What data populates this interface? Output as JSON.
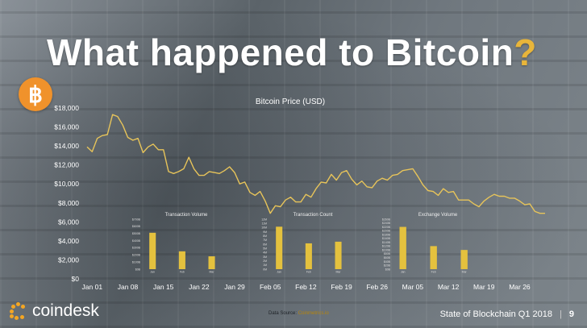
{
  "slide": {
    "title_main": "What happened to Bitcoin",
    "title_mark": "?",
    "badge_symbol": "฿",
    "brand": "coindesk",
    "source_prefix": "Data Source: ",
    "source_link": "Coinmetrics.io",
    "footer_title": "State of Blockchain Q1 2018",
    "footer_separator": "|",
    "page_number": "9"
  },
  "colors": {
    "price_line": "#e7c45a",
    "bars": "#e4c13e",
    "axis_text": "#ffffff",
    "accent": "#e8b53a",
    "badge": "#f0922b"
  },
  "icons": {
    "badge": "bitcoin-icon",
    "brand": "coindesk-logo-icon"
  },
  "chart_data": [
    {
      "type": "line",
      "title": "Bitcoin Price (USD)",
      "xlabel": "",
      "ylabel": "",
      "ylim": [
        0,
        18000
      ],
      "y_ticks": [
        "$0",
        "$2,000",
        "$4,000",
        "$6,000",
        "$8,000",
        "$10,000",
        "$12,000",
        "$14,000",
        "$16,000",
        "$18,000"
      ],
      "x_ticks": [
        "Jan 01",
        "Jan 08",
        "Jan 15",
        "Jan 22",
        "Jan 29",
        "Feb 05",
        "Feb 12",
        "Feb 19",
        "Feb 26",
        "Mar 05",
        "Mar 12",
        "Mar 19",
        "Mar 26"
      ],
      "grid": false,
      "series": [
        {
          "x": [
            "Dec 31",
            "Jan 01",
            "Jan 02",
            "Jan 03",
            "Jan 04",
            "Jan 05",
            "Jan 06",
            "Jan 07",
            "Jan 08",
            "Jan 09",
            "Jan 10",
            "Jan 11",
            "Jan 12",
            "Jan 13",
            "Jan 14",
            "Jan 15",
            "Jan 16",
            "Jan 17",
            "Jan 18",
            "Jan 19",
            "Jan 20",
            "Jan 21",
            "Jan 22",
            "Jan 23",
            "Jan 24",
            "Jan 25",
            "Jan 26",
            "Jan 27",
            "Jan 28",
            "Jan 29",
            "Jan 30",
            "Jan 31",
            "Feb 01",
            "Feb 02",
            "Feb 03",
            "Feb 04",
            "Feb 05",
            "Feb 06",
            "Feb 07",
            "Feb 08",
            "Feb 09",
            "Feb 10",
            "Feb 11",
            "Feb 12",
            "Feb 13",
            "Feb 14",
            "Feb 15",
            "Feb 16",
            "Feb 17",
            "Feb 18",
            "Feb 19",
            "Feb 20",
            "Feb 21",
            "Feb 22",
            "Feb 23",
            "Feb 24",
            "Feb 25",
            "Feb 26",
            "Feb 27",
            "Feb 28",
            "Mar 01",
            "Mar 02",
            "Mar 03",
            "Mar 04",
            "Mar 05",
            "Mar 06",
            "Mar 07",
            "Mar 08",
            "Mar 09",
            "Mar 10",
            "Mar 11",
            "Mar 12",
            "Mar 13",
            "Mar 14",
            "Mar 15",
            "Mar 16",
            "Mar 17",
            "Mar 18",
            "Mar 19",
            "Mar 20",
            "Mar 21",
            "Mar 22",
            "Mar 23",
            "Mar 24",
            "Mar 25",
            "Mar 26",
            "Mar 27",
            "Mar 28",
            "Mar 29",
            "Mar 30",
            "Mar 31"
          ],
          "values": [
            13900,
            13400,
            14800,
            15100,
            15200,
            17300,
            17100,
            16200,
            14900,
            14600,
            14800,
            13300,
            13900,
            14200,
            13600,
            13600,
            11300,
            11100,
            11300,
            11600,
            12800,
            11600,
            10900,
            10900,
            11300,
            11200,
            11100,
            11400,
            11800,
            11200,
            10000,
            10200,
            9100,
            8800,
            9200,
            8200,
            6900,
            7700,
            7600,
            8300,
            8600,
            8100,
            8100,
            8900,
            8600,
            9500,
            10200,
            10100,
            11000,
            10400,
            11200,
            11400,
            10500,
            9900,
            10300,
            9700,
            9600,
            10300,
            10600,
            10400,
            10900,
            11000,
            11400,
            11500,
            11600,
            10800,
            9900,
            9300,
            9200,
            8800,
            9500,
            9100,
            9200,
            8300,
            8300,
            8300,
            7900,
            7600,
            8200,
            8600,
            8900,
            8700,
            8700,
            8500,
            8500,
            8200,
            7800,
            7900,
            7100,
            6900,
            6900
          ]
        }
      ]
    },
    {
      "type": "bar",
      "title": "Transaction Volume",
      "categories": [
        "Jan",
        "Feb",
        "Mar"
      ],
      "values": [
        510,
        250,
        180
      ],
      "ylim": [
        0,
        700
      ],
      "y_ticks": [
        "$0B",
        "$100B",
        "$200B",
        "$300B",
        "$400B",
        "$500B",
        "$600B",
        "$700B"
      ]
    },
    {
      "type": "bar",
      "title": "Transaction Count",
      "categories": [
        "Jan",
        "Feb",
        "Mar"
      ],
      "values": [
        10.2,
        6.2,
        6.6
      ],
      "ylim": [
        0,
        12
      ],
      "y_ticks": [
        "0M",
        "1M",
        "2M",
        "3M",
        "4M",
        "5M",
        "6M",
        "7M",
        "8M",
        "9M",
        "10M",
        "11M",
        "12M"
      ]
    },
    {
      "type": "bar",
      "title": "Exchange Volume",
      "categories": [
        "Jan",
        "Feb",
        "Mar"
      ],
      "values": [
        220,
        120,
        100
      ],
      "ylim": [
        0,
        260
      ],
      "y_ticks": [
        "$0B",
        "$20B",
        "$40B",
        "$60B",
        "$80B",
        "$100B",
        "$120B",
        "$140B",
        "$160B",
        "$180B",
        "$200B",
        "$220B",
        "$240B",
        "$260B"
      ]
    }
  ]
}
